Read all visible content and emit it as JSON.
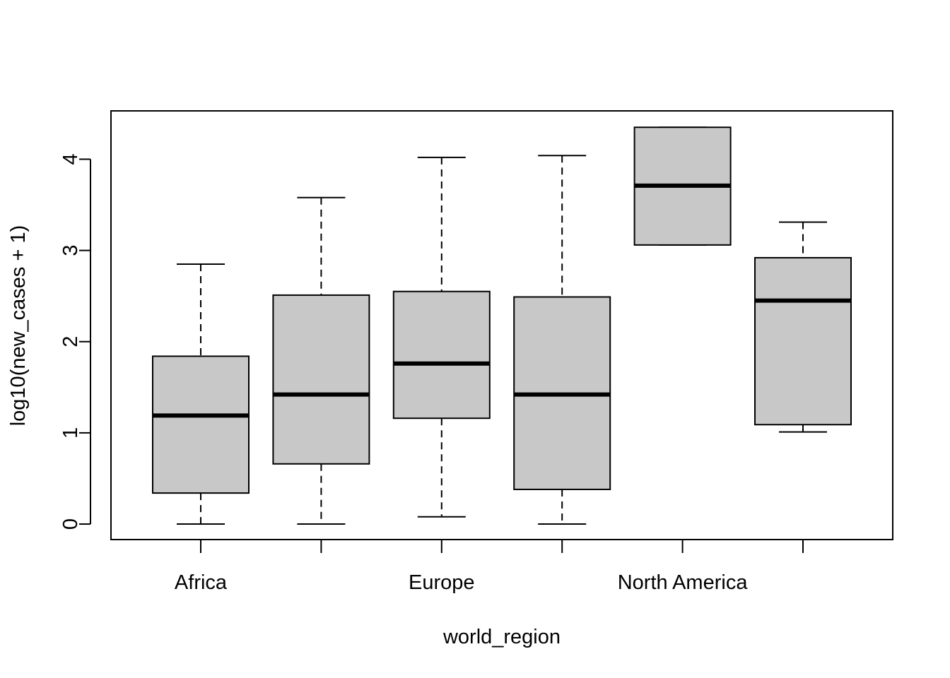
{
  "chart_data": {
    "type": "boxplot",
    "title": "",
    "xlabel": "world_region",
    "ylabel": "log10(new_cases + 1)",
    "ylim": [
      -0.17,
      4.53
    ],
    "yticks": [
      0,
      1,
      2,
      3,
      4
    ],
    "grid": false,
    "legend": "none",
    "box_fill": "#c8c8c8",
    "line_color": "#000000",
    "categories": [
      {
        "label": "Africa",
        "min": 0.0,
        "q1": 0.34,
        "median": 1.19,
        "q3": 1.84,
        "max": 2.85
      },
      {
        "label": "",
        "min": 0.0,
        "q1": 0.66,
        "median": 1.42,
        "q3": 2.51,
        "max": 3.58
      },
      {
        "label": "Europe",
        "min": 0.08,
        "q1": 1.16,
        "median": 1.76,
        "q3": 2.55,
        "max": 4.02
      },
      {
        "label": "",
        "min": 0.0,
        "q1": 0.38,
        "median": 1.42,
        "q3": 2.49,
        "max": 4.04
      },
      {
        "label": "North America",
        "min": 3.06,
        "q1": 3.06,
        "median": 3.71,
        "q3": 4.35,
        "max": 4.35
      },
      {
        "label": "",
        "min": 1.01,
        "q1": 1.09,
        "median": 2.45,
        "q3": 2.92,
        "max": 3.31
      }
    ]
  }
}
